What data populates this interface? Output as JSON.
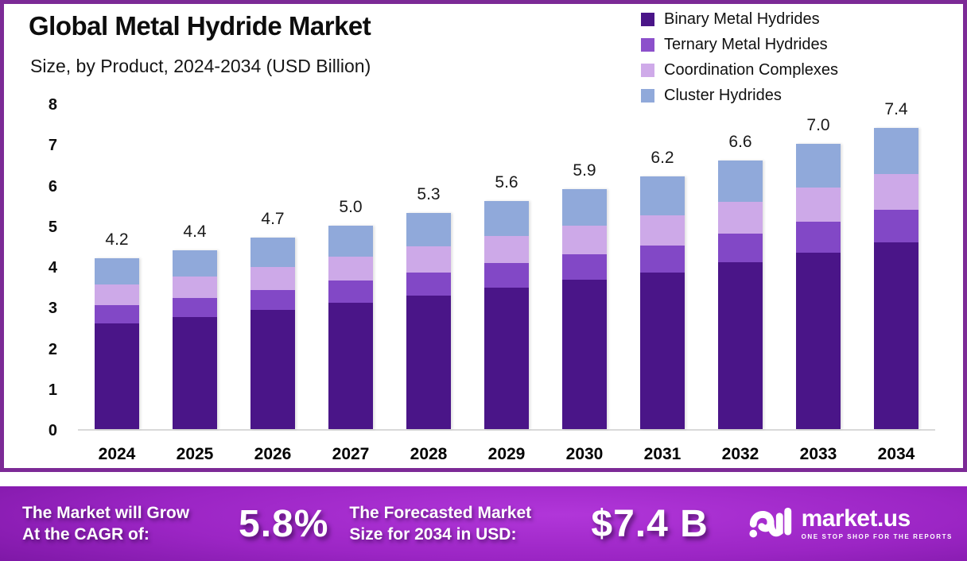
{
  "header": {
    "title": "Global Metal Hydride Market",
    "subtitle": "Size, by Product, 2024-2034 (USD Billion)"
  },
  "legend": {
    "items": [
      {
        "label": "Binary Metal Hydrides",
        "color": "#4a1588"
      },
      {
        "label": "Ternary Metal Hydrides",
        "color": "#8c50cb"
      },
      {
        "label": "Coordination Complexes",
        "color": "#cfaae9"
      },
      {
        "label": "Cluster Hydrides",
        "color": "#90a9da"
      }
    ]
  },
  "chart_data": {
    "type": "bar",
    "stacked": true,
    "title": "Global Metal Hydride Market Size, by Product, 2024-2034 (USD Billion)",
    "categories": [
      "2024",
      "2025",
      "2026",
      "2027",
      "2028",
      "2029",
      "2030",
      "2031",
      "2032",
      "2033",
      "2034"
    ],
    "totals": [
      4.2,
      4.4,
      4.7,
      5.0,
      5.3,
      5.6,
      5.9,
      6.2,
      6.6,
      7.0,
      7.4
    ],
    "totals_labels": [
      "4.2",
      "4.4",
      "4.7",
      "5.0",
      "5.3",
      "5.6",
      "5.9",
      "6.2",
      "6.6",
      "7.0",
      "7.4"
    ],
    "series": [
      {
        "name": "Binary Metal Hydrides",
        "color": "#4a1588",
        "values": [
          2.6,
          2.75,
          2.92,
          3.1,
          3.28,
          3.47,
          3.66,
          3.84,
          4.09,
          4.34,
          4.59
        ]
      },
      {
        "name": "Ternary Metal Hydrides",
        "color": "#8248c6",
        "values": [
          0.45,
          0.47,
          0.5,
          0.54,
          0.57,
          0.6,
          0.63,
          0.66,
          0.71,
          0.75,
          0.79
        ]
      },
      {
        "name": "Coordination Complexes",
        "color": "#cda9e8",
        "values": [
          0.5,
          0.53,
          0.57,
          0.6,
          0.64,
          0.67,
          0.71,
          0.75,
          0.79,
          0.84,
          0.89
        ]
      },
      {
        "name": "Cluster Hydrides",
        "color": "#90a9da",
        "values": [
          0.65,
          0.65,
          0.71,
          0.76,
          0.81,
          0.86,
          0.9,
          0.95,
          1.01,
          1.07,
          1.13
        ]
      }
    ],
    "ylim": [
      0,
      8
    ],
    "yticks": [
      0,
      1,
      2,
      3,
      4,
      5,
      6,
      7,
      8
    ],
    "grid": false,
    "legend_position": "top-right",
    "axis_line_color": "#d9d9d9"
  },
  "banner": {
    "cagr_label_line1": "The Market will Grow",
    "cagr_label_line2": "At the CAGR of:",
    "cagr_value": "5.8%",
    "forecast_label_line1": "The Forecasted Market",
    "forecast_label_line2": "Size for 2034 in USD:",
    "forecast_value": "$7.4 B",
    "logo": {
      "name": "market.us",
      "tagline": "ONE STOP SHOP FOR THE REPORTS"
    }
  },
  "colors": {
    "frame_border": "#7c2a96",
    "banner_gradient_center": "#b136d9",
    "banner_gradient_edge": "#470b63"
  }
}
